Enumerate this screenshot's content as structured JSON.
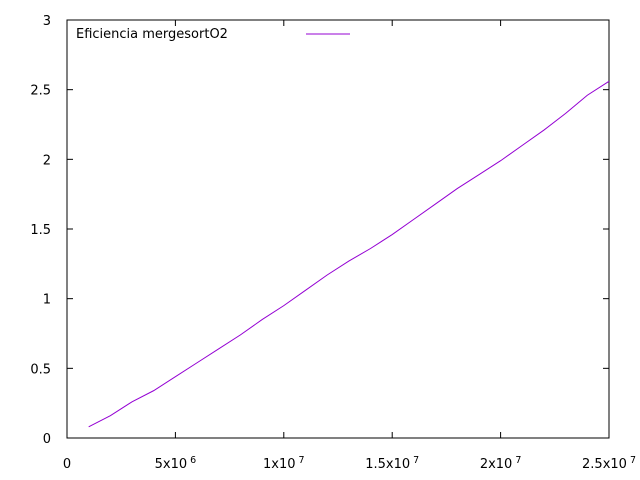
{
  "chart_data": {
    "type": "line",
    "title": "",
    "xlabel": "",
    "ylabel": "",
    "xlim": [
      0,
      25000000
    ],
    "ylim": [
      0,
      3
    ],
    "grid": false,
    "legend_position": "top-left",
    "x_ticks": [
      {
        "value": 0,
        "base": "0",
        "exp": ""
      },
      {
        "value": 5000000,
        "base": "5x10",
        "exp": "6"
      },
      {
        "value": 10000000,
        "base": "1x10",
        "exp": "7"
      },
      {
        "value": 15000000,
        "base": "1.5x10",
        "exp": "7"
      },
      {
        "value": 20000000,
        "base": "2x10",
        "exp": "7"
      },
      {
        "value": 25000000,
        "base": "2.5x10",
        "exp": "7"
      }
    ],
    "y_ticks": [
      {
        "value": 0,
        "label": "0"
      },
      {
        "value": 0.5,
        "label": "0.5"
      },
      {
        "value": 1,
        "label": "1"
      },
      {
        "value": 1.5,
        "label": "1.5"
      },
      {
        "value": 2,
        "label": "2"
      },
      {
        "value": 2.5,
        "label": "2.5"
      },
      {
        "value": 3,
        "label": "3"
      }
    ],
    "series": [
      {
        "name": "Eficiencia mergesortO2",
        "color": "#9400d3",
        "x": [
          1000000,
          2000000,
          3000000,
          4000000,
          5000000,
          6000000,
          7000000,
          8000000,
          9000000,
          10000000,
          11000000,
          12000000,
          13000000,
          14000000,
          15000000,
          16000000,
          17000000,
          18000000,
          19000000,
          20000000,
          21000000,
          22000000,
          23000000,
          24000000,
          25000000
        ],
        "y": [
          0.08,
          0.16,
          0.26,
          0.34,
          0.44,
          0.54,
          0.64,
          0.74,
          0.85,
          0.95,
          1.06,
          1.17,
          1.27,
          1.36,
          1.46,
          1.57,
          1.68,
          1.79,
          1.89,
          1.99,
          2.1,
          2.21,
          2.33,
          2.46,
          2.56
        ]
      }
    ]
  }
}
